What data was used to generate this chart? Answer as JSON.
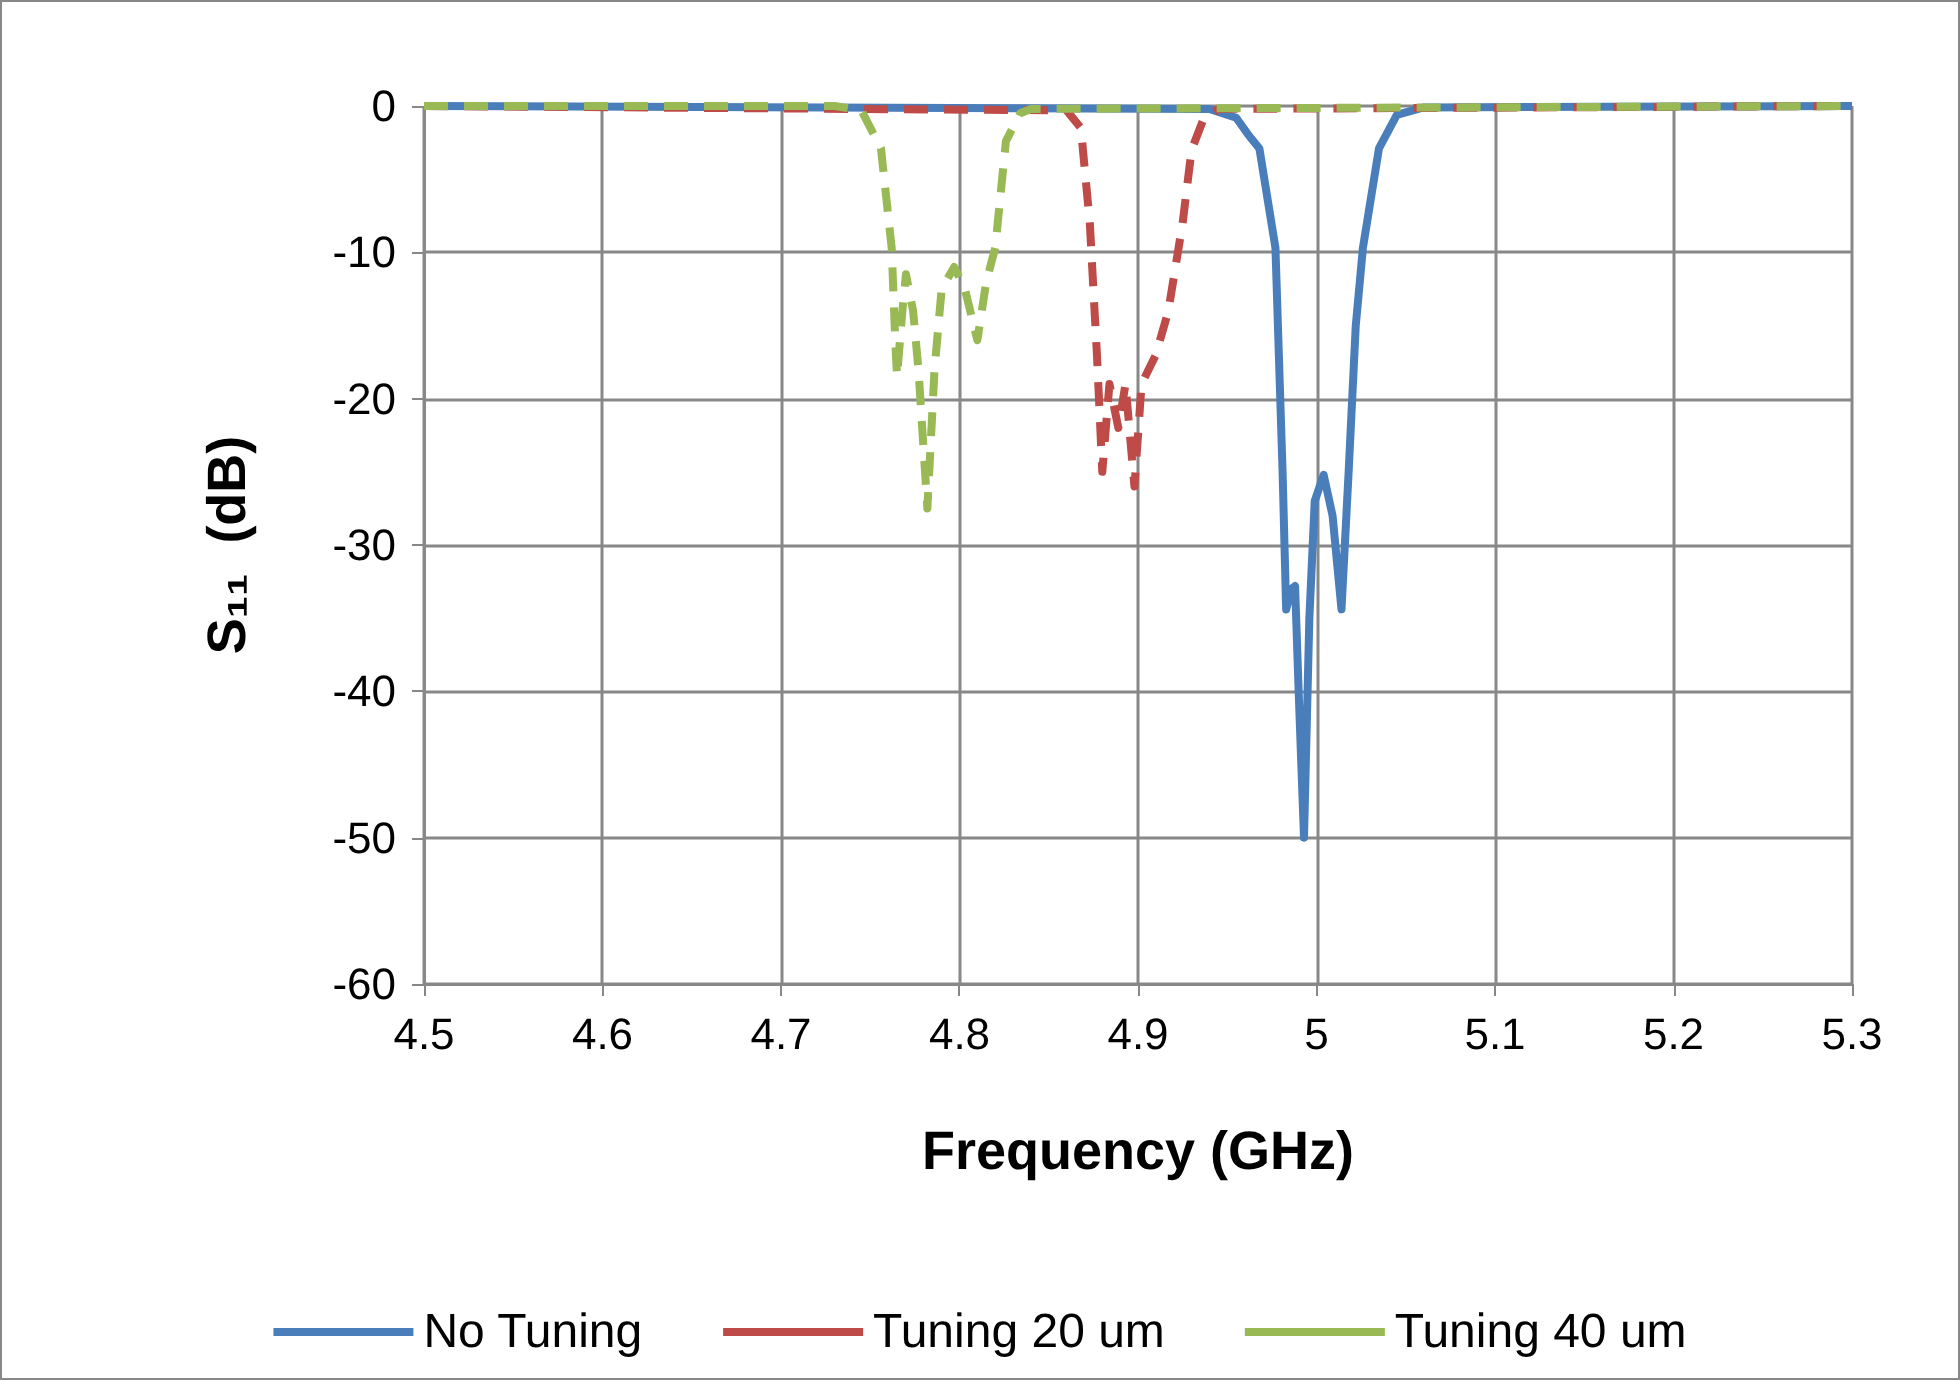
{
  "chart_data": {
    "type": "line",
    "xlabel": "Frequency (GHz)",
    "ylabel": "S₁₁  (dB)",
    "xlim": [
      4.5,
      5.3
    ],
    "xticks": [
      4.5,
      4.6,
      4.7,
      4.8,
      4.9,
      5,
      5.1,
      5.2,
      5.3
    ],
    "ylim": [
      -60,
      0
    ],
    "yticks": [
      -60,
      -50,
      -40,
      -30,
      -20,
      -10,
      0
    ],
    "grid": true,
    "legend": "bottom",
    "marker": "none",
    "series": [
      {
        "name": "No Tuning",
        "color": "#4a7ebb",
        "line_style": "solid",
        "x": [
          4.5,
          4.94,
          4.955,
          4.962,
          4.968,
          4.977,
          4.981,
          4.983,
          4.986,
          4.988,
          4.99,
          4.993,
          4.996,
          4.999,
          5.004,
          5.009,
          5.014,
          5.018,
          5.022,
          5.026,
          5.035,
          5.045,
          5.06,
          5.3
        ],
        "values": [
          0,
          -0.2,
          -0.8,
          -2,
          -2.9,
          -9.7,
          -25,
          -34.4,
          -33,
          -32.8,
          -40,
          -50,
          -35,
          -27,
          -25.2,
          -28,
          -34.4,
          -25,
          -15,
          -9.7,
          -2.9,
          -0.6,
          -0.1,
          0
        ]
      },
      {
        "name": "Tuning 20 um",
        "color": "#be4b48",
        "line_style": "dashed",
        "x": [
          4.5,
          4.86,
          4.868,
          4.873,
          4.877,
          4.88,
          4.884,
          4.889,
          4.893,
          4.898,
          4.902,
          4.91,
          4.917,
          4.925,
          4.93,
          4.937,
          4.945,
          5.3
        ],
        "values": [
          0,
          -0.3,
          -1.5,
          -8,
          -17,
          -25,
          -19,
          -22,
          -19,
          -26,
          -19,
          -17,
          -14,
          -8,
          -3,
          -0.8,
          -0.2,
          0
        ]
      },
      {
        "name": "Tuning 40 um",
        "color": "#98b954",
        "line_style": "dashed",
        "x": [
          4.5,
          4.73,
          4.745,
          4.756,
          4.762,
          4.764,
          4.765,
          4.768,
          4.77,
          4.774,
          4.777,
          4.782,
          4.786,
          4.79,
          4.797,
          4.803,
          4.81,
          4.815,
          4.82,
          4.826,
          4.834,
          4.84,
          5.3
        ],
        "values": [
          0,
          0,
          -0.3,
          -2.9,
          -9.7,
          -16,
          -18.5,
          -14,
          -11.5,
          -14,
          -18,
          -27.5,
          -18,
          -12.5,
          -11,
          -12.5,
          -16,
          -12,
          -9.7,
          -2.4,
          -0.5,
          -0.2,
          0
        ]
      }
    ]
  }
}
